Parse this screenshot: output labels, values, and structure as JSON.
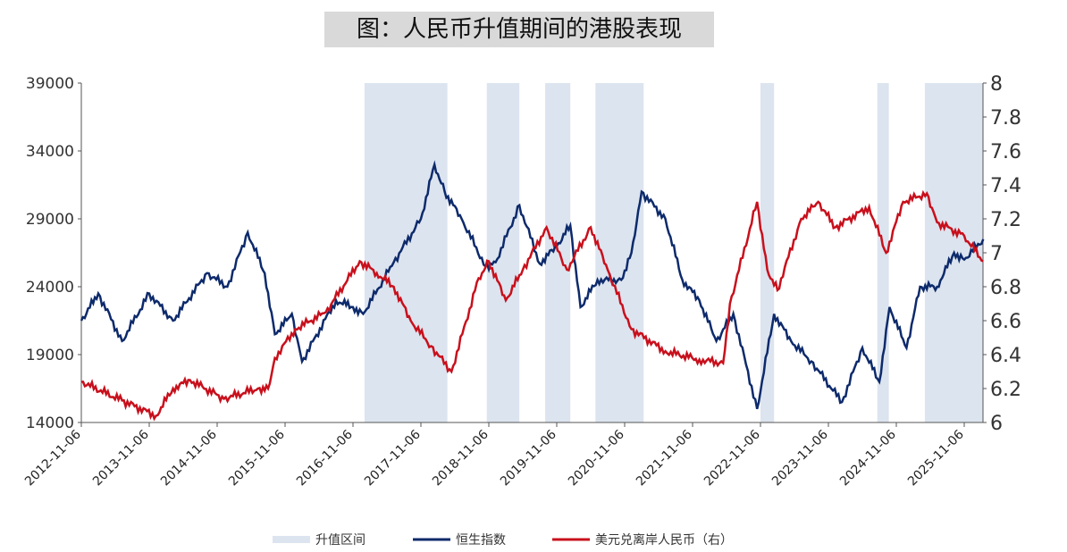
{
  "chart_data": {
    "type": "line",
    "title": "图：人民币升值期间的港股表现",
    "x_ticks": [
      "2012-11-06",
      "2013-11-06",
      "2014-11-06",
      "2015-11-06",
      "2016-11-06",
      "2017-11-06",
      "2018-11-06",
      "2019-11-06",
      "2020-11-06",
      "2021-11-06",
      "2022-11-06",
      "2023-11-06",
      "2024-11-06",
      "2025-11-06"
    ],
    "xlim": [
      2012.85,
      2026.13
    ],
    "y_left": {
      "ylim": [
        14000,
        39000
      ],
      "ticks": [
        "14000",
        "19000",
        "24000",
        "29000",
        "34000",
        "39000"
      ]
    },
    "y_right": {
      "ylim": [
        6,
        8
      ],
      "ticks": [
        "6",
        "6.2",
        "6.4",
        "6.6",
        "6.8",
        "7",
        "7.2",
        "7.4",
        "7.6",
        "7.8",
        "8"
      ]
    },
    "legend": {
      "placement": "bottom",
      "items": [
        "升值区间",
        "恒生指数",
        "美元兑离岸人民币（右）"
      ]
    },
    "colors": {
      "shade": "#dce4ef",
      "hsi": "#0d2a6b",
      "cnh": "#c8101c"
    },
    "appreciation_periods": [
      [
        2017.02,
        2018.24
      ],
      [
        2018.82,
        2019.3
      ],
      [
        2019.68,
        2020.05
      ],
      [
        2020.42,
        2021.13
      ],
      [
        2022.85,
        2023.05
      ],
      [
        2024.57,
        2024.74
      ],
      [
        2025.27,
        2026.13
      ]
    ],
    "series": [
      {
        "name": "恒生指数",
        "axis": "left",
        "x": [
          2012.85,
          2013.1,
          2013.45,
          2013.85,
          2014.2,
          2014.7,
          2015.0,
          2015.3,
          2015.55,
          2015.7,
          2015.95,
          2016.1,
          2016.6,
          2016.85,
          2017.0,
          2017.45,
          2017.85,
          2018.05,
          2018.2,
          2018.45,
          2018.8,
          2018.95,
          2019.3,
          2019.6,
          2019.85,
          2020.05,
          2020.2,
          2020.45,
          2020.8,
          2020.95,
          2021.1,
          2021.45,
          2021.7,
          2021.95,
          2022.2,
          2022.45,
          2022.8,
          2023.05,
          2023.3,
          2023.6,
          2024.05,
          2024.35,
          2024.6,
          2024.75,
          2025.0,
          2025.2,
          2025.45,
          2025.7,
          2025.85,
          2026.13
        ],
        "values": [
          21500,
          23500,
          20000,
          23500,
          21500,
          25000,
          24000,
          28000,
          25000,
          20500,
          22000,
          18500,
          23000,
          22500,
          22000,
          25800,
          29000,
          33000,
          31000,
          29000,
          25500,
          25800,
          30000,
          25700,
          27000,
          28500,
          22500,
          24500,
          24500,
          26500,
          31000,
          29000,
          24500,
          23000,
          20000,
          22000,
          15000,
          22000,
          20000,
          18500,
          15500,
          19500,
          17000,
          22500,
          19500,
          24000,
          24000,
          26500,
          26000,
          27500
        ]
      },
      {
        "name": "美元兑离岸人民币（右）",
        "axis": "right",
        "x": [
          2012.85,
          2013.45,
          2013.95,
          2014.2,
          2014.45,
          2014.95,
          2015.45,
          2015.6,
          2015.7,
          2016.0,
          2016.45,
          2016.95,
          2017.2,
          2017.45,
          2017.7,
          2018.0,
          2018.3,
          2018.7,
          2018.85,
          2019.1,
          2019.35,
          2019.7,
          2020.0,
          2020.35,
          2020.6,
          2020.95,
          2021.45,
          2021.95,
          2022.3,
          2022.4,
          2022.8,
          2022.95,
          2023.1,
          2023.45,
          2023.7,
          2023.95,
          2024.45,
          2024.7,
          2024.95,
          2025.3,
          2025.45,
          2025.85,
          2026.13
        ],
        "values": [
          6.24,
          6.13,
          6.04,
          6.2,
          6.25,
          6.14,
          6.2,
          6.2,
          6.38,
          6.55,
          6.65,
          6.95,
          6.88,
          6.8,
          6.6,
          6.45,
          6.3,
          6.85,
          6.95,
          6.72,
          6.9,
          7.15,
          6.9,
          7.15,
          6.9,
          6.55,
          6.42,
          6.37,
          6.35,
          6.7,
          7.3,
          6.9,
          6.78,
          7.2,
          7.3,
          7.15,
          7.27,
          7.0,
          7.3,
          7.35,
          7.18,
          7.1,
          6.95
        ]
      }
    ]
  }
}
